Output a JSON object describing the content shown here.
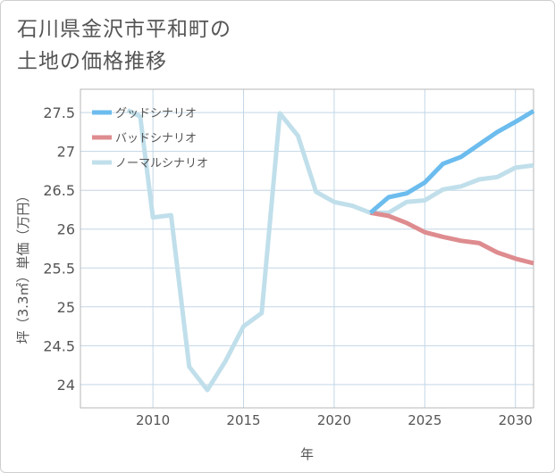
{
  "title_lines": [
    "石川県金沢市平和町の",
    "土地の価格推移"
  ],
  "chart_data": {
    "type": "line",
    "title": "石川県金沢市平和町の土地の価格推移",
    "xlabel": "年",
    "ylabel": "坪（3.3㎡）単価（万円）",
    "xlim": [
      2006,
      2031
    ],
    "ylim": [
      23.7,
      27.8
    ],
    "xticks": [
      2010,
      2015,
      2020,
      2025,
      2030
    ],
    "yticks": [
      24,
      24.5,
      25,
      25.5,
      26,
      26.5,
      27,
      27.5
    ],
    "ytick_labels": [
      "24",
      "24.5",
      "25",
      "25.5",
      "26",
      "26.5",
      "27",
      "27.5"
    ],
    "grid": true,
    "legend_position": "top-left",
    "series": [
      {
        "name": "グッドシナリオ",
        "color": "#6cbcee",
        "points": [
          [
            2022,
            26.21
          ],
          [
            2023,
            26.41
          ],
          [
            2024,
            26.46
          ],
          [
            2025,
            26.6
          ],
          [
            2026,
            26.84
          ],
          [
            2027,
            26.93
          ],
          [
            2028,
            27.09
          ],
          [
            2029,
            27.25
          ],
          [
            2030,
            27.38
          ],
          [
            2031,
            27.52
          ]
        ]
      },
      {
        "name": "バッドシナリオ",
        "color": "#de8c8f",
        "points": [
          [
            2022,
            26.21
          ],
          [
            2023,
            26.17
          ],
          [
            2024,
            26.08
          ],
          [
            2025,
            25.96
          ],
          [
            2026,
            25.9
          ],
          [
            2027,
            25.85
          ],
          [
            2028,
            25.82
          ],
          [
            2029,
            25.7
          ],
          [
            2030,
            25.62
          ],
          [
            2031,
            25.56
          ]
        ]
      },
      {
        "name": "ノーマルシナリオ",
        "color": "#c0dfeb",
        "points": [
          [
            2008.6,
            27.53
          ],
          [
            2009.3,
            27.45
          ],
          [
            2010,
            26.15
          ],
          [
            2011,
            26.18
          ],
          [
            2012,
            24.23
          ],
          [
            2013,
            23.93
          ],
          [
            2014,
            24.3
          ],
          [
            2015,
            24.75
          ],
          [
            2016,
            24.92
          ],
          [
            2017,
            27.49
          ],
          [
            2018,
            27.2
          ],
          [
            2019,
            26.48
          ],
          [
            2020,
            26.35
          ],
          [
            2021,
            26.3
          ],
          [
            2022,
            26.21
          ],
          [
            2023,
            26.21
          ],
          [
            2024,
            26.35
          ],
          [
            2025,
            26.37
          ],
          [
            2026,
            26.51
          ],
          [
            2027,
            26.55
          ],
          [
            2028,
            26.64
          ],
          [
            2029,
            26.67
          ],
          [
            2030,
            26.79
          ],
          [
            2031,
            26.82
          ]
        ]
      }
    ]
  }
}
